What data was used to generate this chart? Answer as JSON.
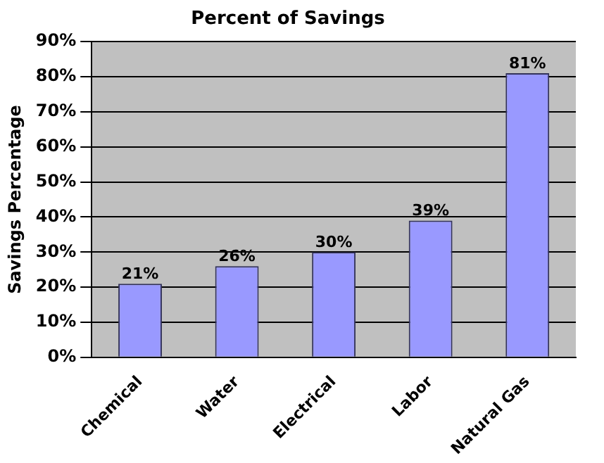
{
  "chart_data": {
    "type": "bar",
    "title": "Percent of Savings",
    "ylabel": "Savings Percentage",
    "categories": [
      "Chemical",
      "Water",
      "Electrical",
      "Labor",
      "Natural Gas"
    ],
    "values": [
      21,
      26,
      30,
      39,
      81
    ],
    "color": "#9999ff",
    "value_labels": [
      "21%",
      "26%",
      "30%",
      "39%",
      "81%"
    ],
    "ylim": [
      0,
      90
    ],
    "yticks": [
      {
        "value": 0,
        "label": "0%"
      },
      {
        "value": 10,
        "label": "10%"
      },
      {
        "value": 20,
        "label": "20%"
      },
      {
        "value": 30,
        "label": "30%"
      },
      {
        "value": 40,
        "label": "40%"
      },
      {
        "value": 50,
        "label": "50%"
      },
      {
        "value": 60,
        "label": "60%"
      },
      {
        "value": 70,
        "label": "70%"
      },
      {
        "value": 80,
        "label": "80%"
      },
      {
        "value": 90,
        "label": "90%"
      }
    ],
    "grid": "y",
    "legend": false
  }
}
